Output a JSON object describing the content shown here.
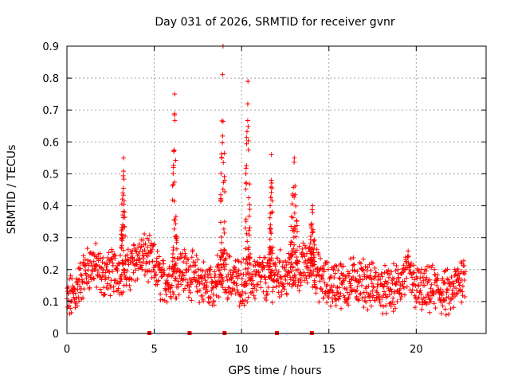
{
  "chart_data": {
    "type": "scatter",
    "title": "Day 031 of 2026, SRMTID for receiver gvnr",
    "xlabel": "GPS time / hours",
    "ylabel": "SRMTID / TECUs",
    "xlim": [
      0,
      24
    ],
    "ylim": [
      0,
      0.9
    ],
    "xticks": [
      0,
      5,
      10,
      15,
      20
    ],
    "yticks": [
      0,
      0.1,
      0.2,
      0.3,
      0.4,
      0.5,
      0.6,
      0.7,
      0.8,
      0.9
    ],
    "grid": true,
    "marker": "+",
    "color": "#ff0000",
    "series": [
      {
        "name": "SRMTID",
        "baseline_profile": [
          [
            0.0,
            0.1
          ],
          [
            0.5,
            0.13
          ],
          [
            1.0,
            0.19
          ],
          [
            1.5,
            0.22
          ],
          [
            2.0,
            0.18
          ],
          [
            2.5,
            0.19
          ],
          [
            3.0,
            0.2
          ],
          [
            3.5,
            0.19
          ],
          [
            4.0,
            0.24
          ],
          [
            4.5,
            0.24
          ],
          [
            5.0,
            0.21
          ],
          [
            5.5,
            0.16
          ],
          [
            6.0,
            0.18
          ],
          [
            6.5,
            0.2
          ],
          [
            7.0,
            0.19
          ],
          [
            7.5,
            0.17
          ],
          [
            8.0,
            0.15
          ],
          [
            8.5,
            0.16
          ],
          [
            9.0,
            0.19
          ],
          [
            9.5,
            0.17
          ],
          [
            10.0,
            0.16
          ],
          [
            10.5,
            0.17
          ],
          [
            11.0,
            0.18
          ],
          [
            11.5,
            0.17
          ],
          [
            12.0,
            0.19
          ],
          [
            12.5,
            0.18
          ],
          [
            13.0,
            0.2
          ],
          [
            13.5,
            0.21
          ],
          [
            14.0,
            0.22
          ],
          [
            14.5,
            0.17
          ],
          [
            15.0,
            0.15
          ],
          [
            15.5,
            0.16
          ],
          [
            16.0,
            0.15
          ],
          [
            16.5,
            0.17
          ],
          [
            17.0,
            0.16
          ],
          [
            17.5,
            0.15
          ],
          [
            18.0,
            0.14
          ],
          [
            18.5,
            0.13
          ],
          [
            19.0,
            0.15
          ],
          [
            19.5,
            0.19
          ],
          [
            20.0,
            0.14
          ],
          [
            20.5,
            0.13
          ],
          [
            21.0,
            0.14
          ],
          [
            21.5,
            0.13
          ],
          [
            22.0,
            0.12
          ],
          [
            22.5,
            0.17
          ],
          [
            22.8,
            0.19
          ]
        ],
        "spikes": [
          {
            "x": [
              3.1,
              3.35
            ],
            "peak": 0.55
          },
          {
            "x": [
              6.0,
              6.3
            ],
            "peak": 0.75
          },
          {
            "x": [
              8.8,
              9.05
            ],
            "peak": 0.9
          },
          {
            "x": [
              10.2,
              10.5
            ],
            "peak": 0.79
          },
          {
            "x": [
              11.6,
              11.8
            ],
            "peak": 0.56
          },
          {
            "x": [
              12.8,
              13.2
            ],
            "peak": 0.55
          },
          {
            "x": [
              13.9,
              14.2
            ],
            "peak": 0.4
          }
        ]
      }
    ],
    "axis_markers_x": [
      4.7,
      7.0,
      9.0,
      12.0,
      14.0
    ]
  }
}
